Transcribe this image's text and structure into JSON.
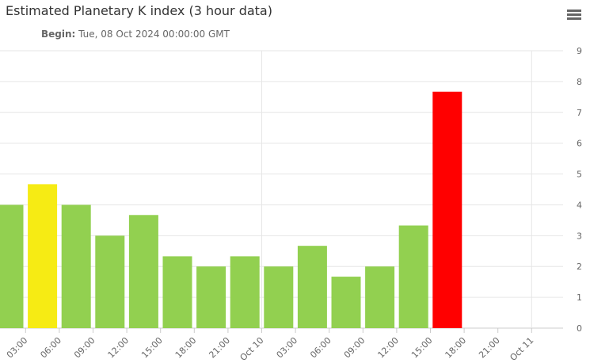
{
  "menu_icon": "hamburger-menu-icon",
  "chart_data": {
    "type": "bar",
    "title": "Estimated Planetary K index (3 hour data)",
    "subtitle_label": "Begin:",
    "subtitle_value": "Tue, 08 Oct 2024 00:00:00 GMT",
    "x_tick_labels": [
      "03:00",
      "06:00",
      "09:00",
      "12:00",
      "15:00",
      "18:00",
      "21:00",
      "Oct 10",
      "03:00",
      "06:00",
      "09:00",
      "12:00",
      "15:00",
      "18:00",
      "21:00",
      "Oct 11"
    ],
    "y_tick_labels": [
      "0",
      "1",
      "2",
      "3",
      "4",
      "5",
      "6",
      "7",
      "8",
      "9"
    ],
    "ylim": [
      0,
      9
    ],
    "grid": true,
    "values": [
      4.0,
      4.67,
      4.0,
      3.0,
      3.67,
      2.33,
      2.0,
      2.33,
      2.0,
      2.67,
      1.67,
      2.0,
      3.33,
      7.67
    ],
    "colors": [
      "#92d050",
      "#f6eb14",
      "#92d050",
      "#92d050",
      "#92d050",
      "#92d050",
      "#92d050",
      "#92d050",
      "#92d050",
      "#92d050",
      "#92d050",
      "#92d050",
      "#92d050",
      "#ff0000"
    ],
    "bar_notes": [
      "first bar partially clipped at left edge"
    ]
  }
}
